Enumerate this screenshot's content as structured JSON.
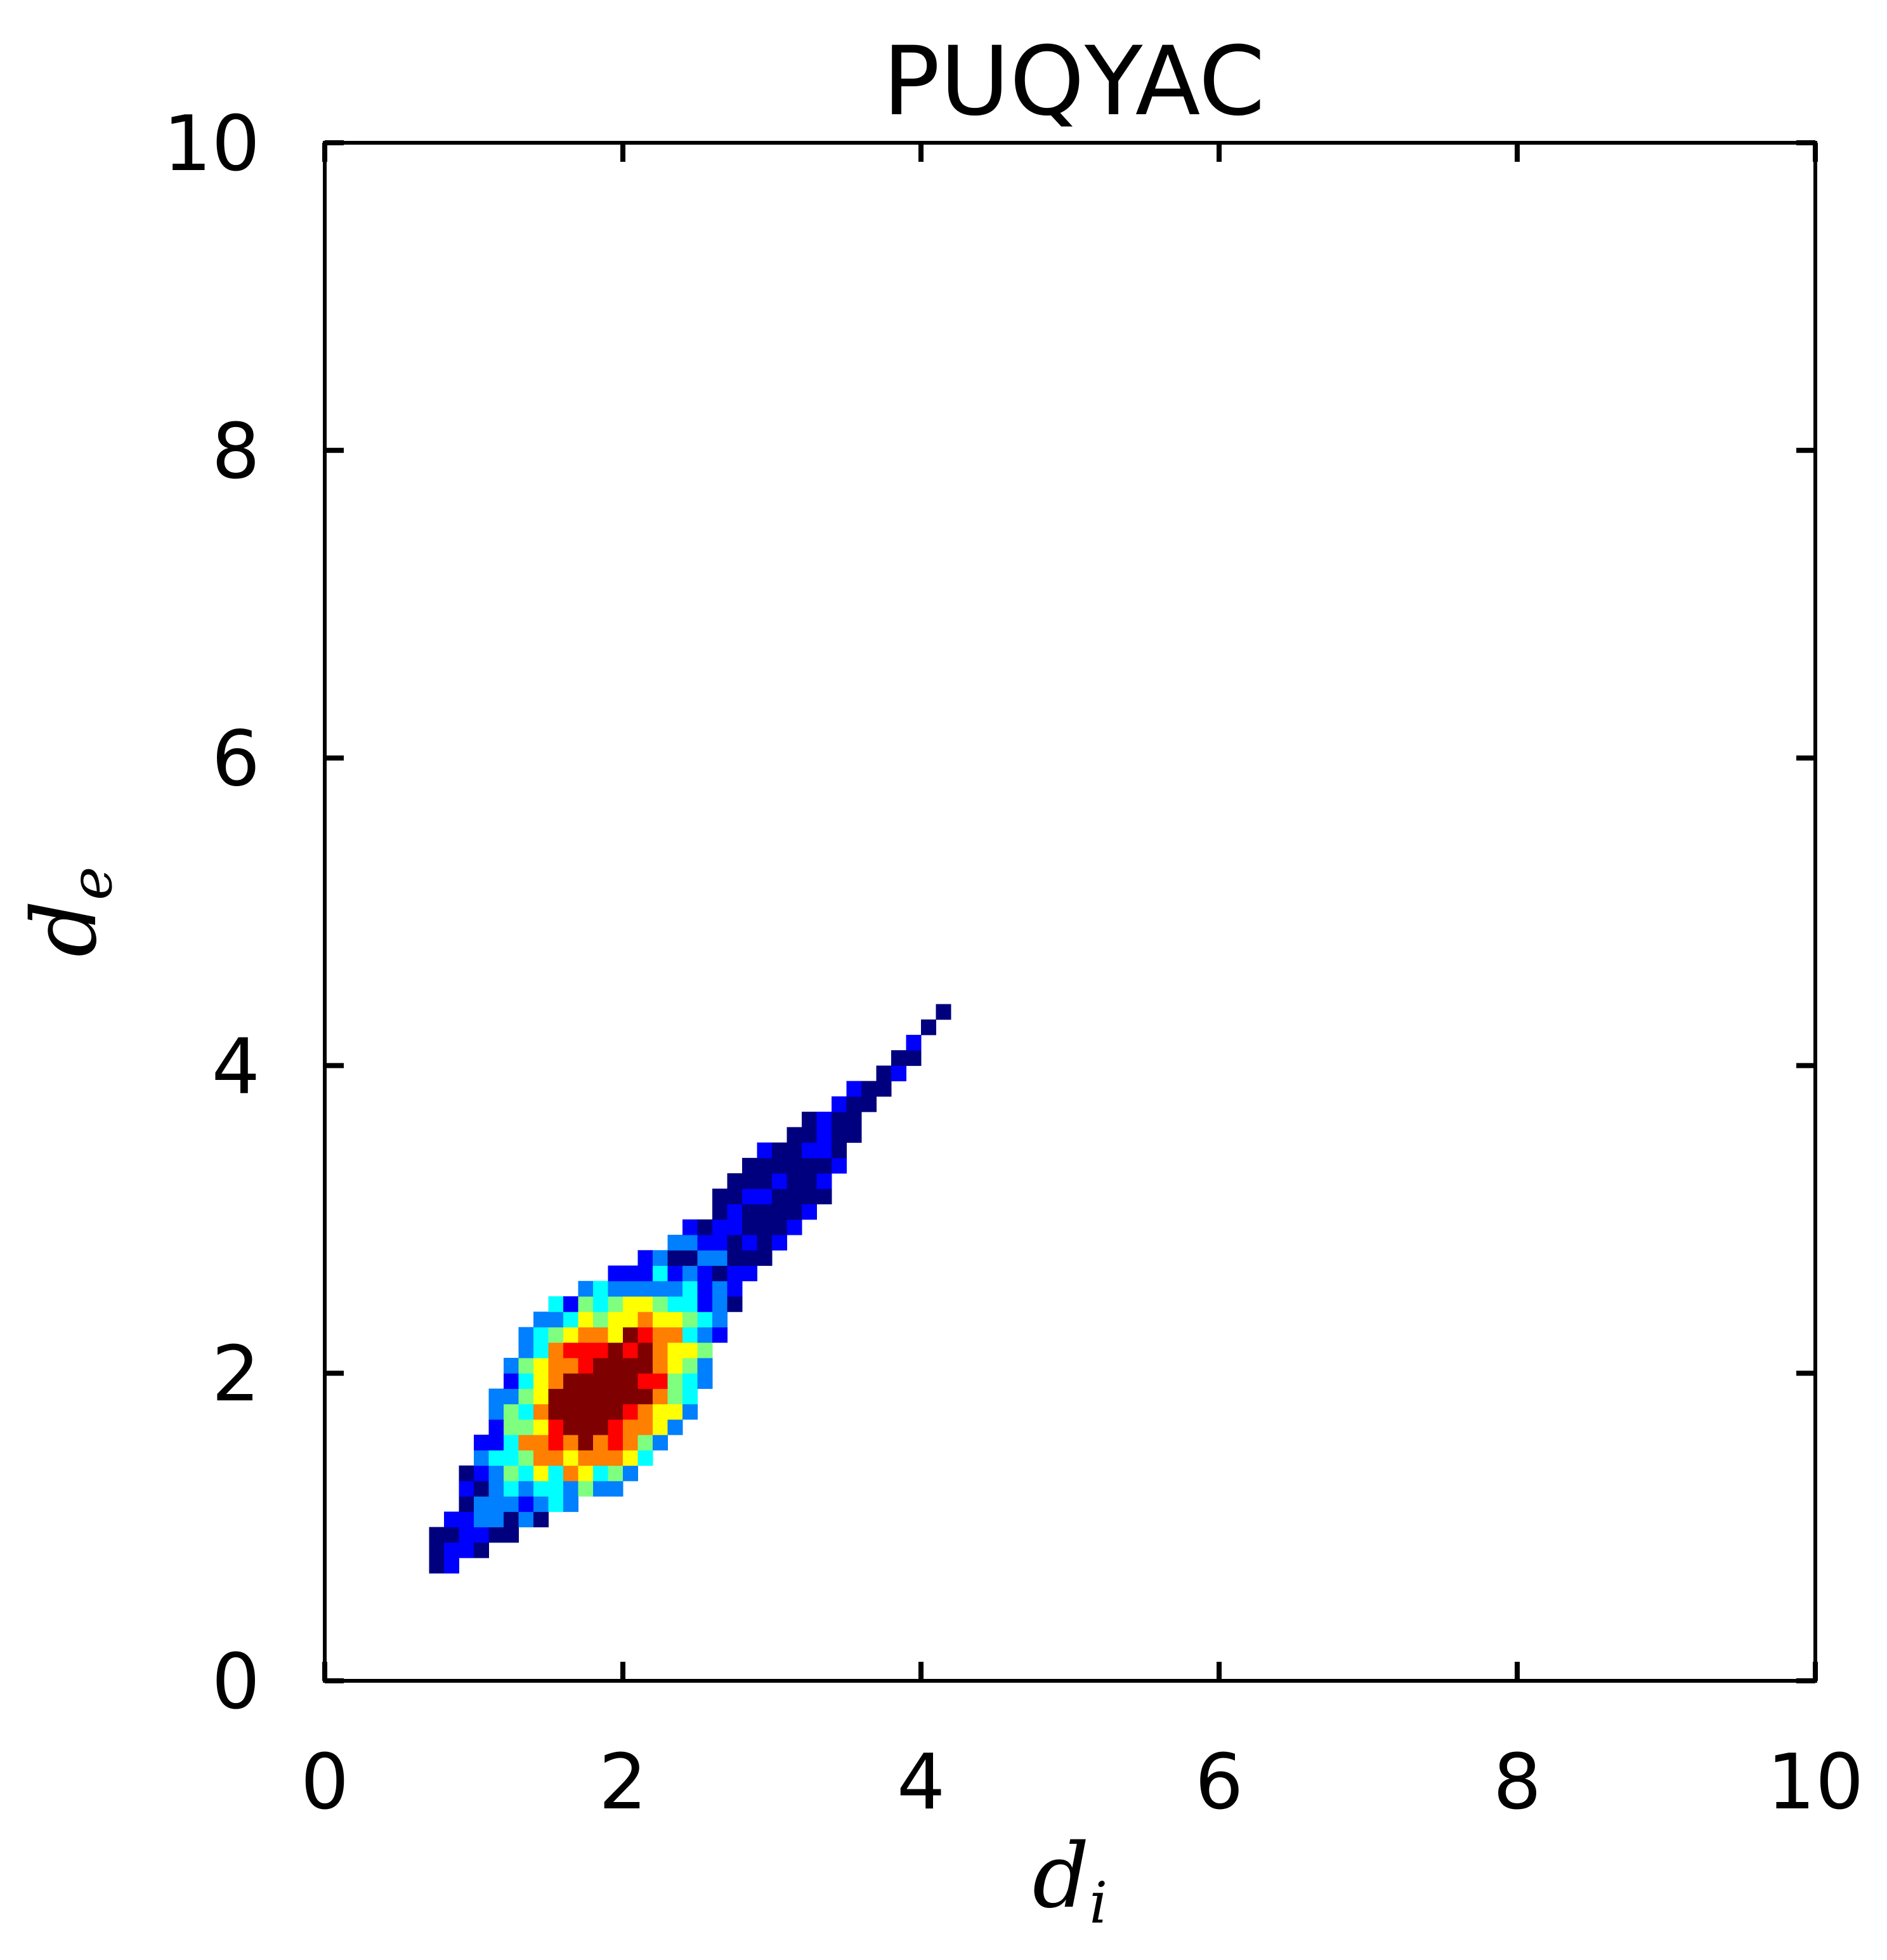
{
  "chart_data": {
    "type": "heatmap",
    "title": "PUQYAC",
    "xlabel": "d",
    "xlabel_sub": "i",
    "ylabel": "d",
    "ylabel_sub": "e",
    "xlim": [
      0,
      10
    ],
    "ylim": [
      0,
      10
    ],
    "xticks": [
      "0",
      "2",
      "4",
      "6",
      "8",
      "10"
    ],
    "yticks": [
      "0",
      "2",
      "4",
      "6",
      "8",
      "10"
    ],
    "grid": false,
    "bin_size": 0.1,
    "colormap": "jet",
    "colors": {
      "jet": [
        "#00007f",
        "#0000ff",
        "#007fff",
        "#00ffff",
        "#7fff7f",
        "#ffff00",
        "#ff7f00",
        "#ff0000",
        "#7f0000"
      ]
    },
    "density_model": {
      "description_free": true,
      "center": [
        1.9,
        1.85
      ],
      "ridge_start": [
        0.75,
        0.75
      ],
      "ridge_end": [
        4.15,
        4.35
      ]
    }
  }
}
